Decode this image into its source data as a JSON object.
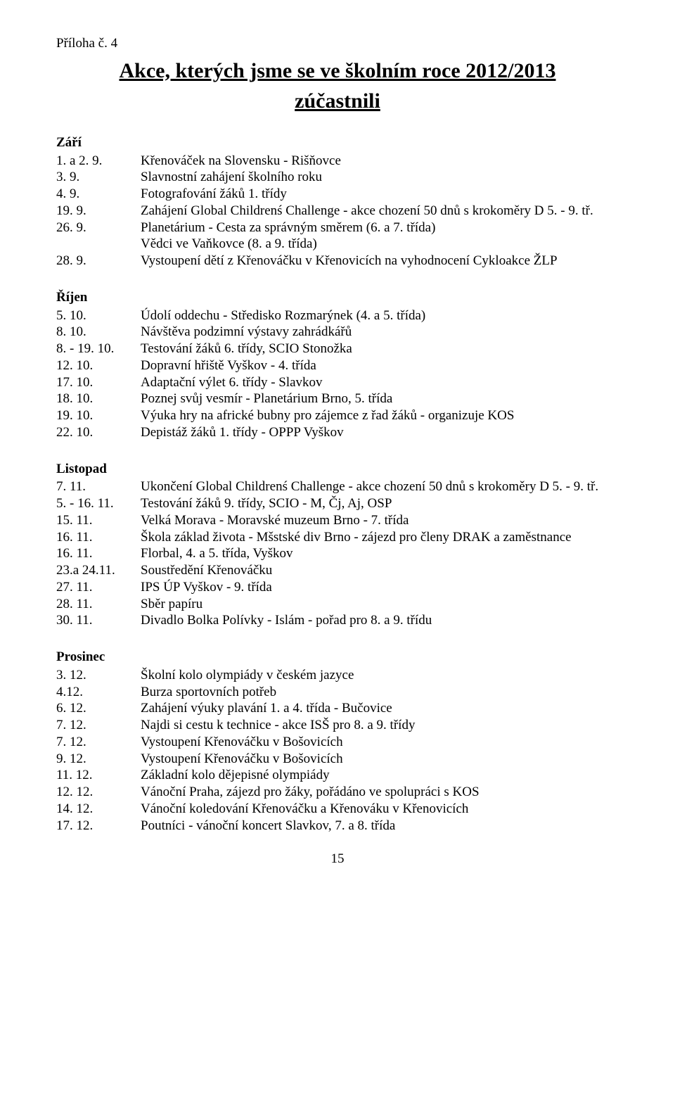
{
  "attachment": "Příloha č. 4",
  "title_line1": "Akce, kterých jsme se ve školním roce 2012/2013",
  "title_line2": "zúčastnili",
  "sections": [
    {
      "month": "Září",
      "entries": [
        {
          "date": "1. a 2. 9.",
          "text": "Křenováček na Slovensku - Rišňovce"
        },
        {
          "date": "3. 9.",
          "text": "Slavnostní zahájení školního roku"
        },
        {
          "date": "4. 9.",
          "text": "Fotografování žáků 1. třídy"
        },
        {
          "date": "19. 9.",
          "text": "Zahájení Global Childrenś Challenge - akce chození 50 dnů s krokoměry D 5. - 9. tř."
        },
        {
          "date": "26. 9.",
          "text": "Planetárium - Cesta za správným směrem (6. a 7. třída)"
        },
        {
          "date": "",
          "text": "Vědci ve Vaňkovce (8. a 9. třída)"
        },
        {
          "date": "28. 9.",
          "text": "Vystoupení dětí z Křenováčku v Křenovicích na vyhodnocení Cykloakce ŽLP"
        }
      ]
    },
    {
      "month": "Říjen",
      "entries": [
        {
          "date": "5. 10.",
          "text": "Údolí oddechu - Středisko Rozmarýnek (4. a 5. třída)"
        },
        {
          "date": "8. 10.",
          "text": "Návštěva podzimní výstavy zahrádkářů"
        },
        {
          "date": "8. - 19. 10.",
          "text": "Testování  žáků 6. třídy, SCIO Stonožka"
        },
        {
          "date": "12. 10.",
          "text": "Dopravní hřiště Vyškov - 4. třída"
        },
        {
          "date": "17. 10.",
          "text": "Adaptační výlet 6. třídy - Slavkov"
        },
        {
          "date": "18. 10.",
          "text": "Poznej svůj vesmír - Planetárium Brno, 5. třída"
        },
        {
          "date": "19. 10.",
          "text": "Výuka hry na africké bubny pro zájemce z řad žáků - organizuje KOS"
        },
        {
          "date": "22. 10.",
          "text": "Depistáž žáků 1. třídy - OPPP Vyškov"
        }
      ]
    },
    {
      "month": "Listopad",
      "entries": [
        {
          "date": "7. 11.",
          "text": "Ukončení Global Childrenś Challenge - akce chození 50 dnů s krokoměry D 5. - 9. tř."
        },
        {
          "date": "5. - 16. 11.",
          "text": "Testování  žáků 9. třídy, SCIO - M, Čj, Aj, OSP"
        },
        {
          "date": "15. 11.",
          "text": "Velká Morava - Moravské muzeum Brno - 7. třída"
        },
        {
          "date": "16. 11.",
          "text": "Škola základ života - Mšstské div Brno - zájezd pro členy DRAK a zaměstnance"
        },
        {
          "date": "16. 11.",
          "text": "Florbal, 4. a 5. třída, Vyškov"
        },
        {
          "date": "23.a 24.11.",
          "text": "Soustředění Křenováčku"
        },
        {
          "date": "27. 11.",
          "text": "IPS ÚP Vyškov - 9. třída"
        },
        {
          "date": "28. 11.",
          "text": "Sběr papíru"
        },
        {
          "date": "30. 11.",
          "text": "Divadlo Bolka Polívky - Islám - pořad pro 8. a 9. třídu"
        }
      ]
    },
    {
      "month": "Prosinec",
      "entries": [
        {
          "date": "3. 12.",
          "text": "Školní kolo olympiády v českém jazyce"
        },
        {
          "date": "4.12.",
          "text": "Burza sportovních potřeb"
        },
        {
          "date": "6. 12.",
          "text": "Zahájení výuky plavání 1. a 4. třída - Bučovice"
        },
        {
          "date": "7. 12.",
          "text": "Najdi si cestu k technice - akce ISŠ pro 8. a 9. třídy"
        },
        {
          "date": "7. 12.",
          "text": "Vystoupení Křenováčku v Bošovicích"
        },
        {
          "date": "9. 12.",
          "text": "Vystoupení Křenováčku v Bošovicích"
        },
        {
          "date": "11. 12.",
          "text": "Základní kolo dějepisné olympiády"
        },
        {
          "date": "12. 12.",
          "text": "Vánoční Praha, zájezd pro žáky, pořádáno ve spolupráci s KOS"
        },
        {
          "date": "14. 12.",
          "text": "Vánoční koledování Křenováčku a Křenováku v Křenovicích"
        },
        {
          "date": "17. 12.",
          "text": "Poutníci - vánoční koncert Slavkov, 7. a 8. třída"
        }
      ]
    }
  ],
  "page_number": "15"
}
